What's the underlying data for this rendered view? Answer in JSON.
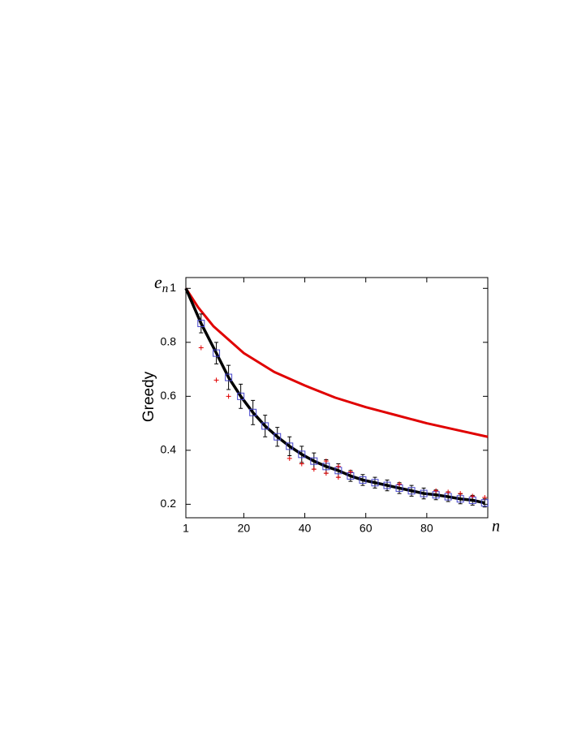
{
  "chart_data": {
    "type": "line",
    "y_label": "Greedy",
    "x_label": "n",
    "y_symbol": {
      "base": "e",
      "sub": "n"
    },
    "xlim": [
      1,
      100
    ],
    "ylim": [
      0.15,
      1.04
    ],
    "xticks": [
      1,
      20,
      40,
      60,
      80
    ],
    "yticks": [
      0.2,
      0.4,
      0.6,
      0.8,
      1
    ],
    "series": [
      {
        "kind": "line",
        "color": "#e00000",
        "width": 3,
        "x": [
          1,
          5,
          10,
          20,
          30,
          40,
          50,
          60,
          70,
          80,
          90,
          100
        ],
        "values": [
          1,
          0.93,
          0.86,
          0.76,
          0.69,
          0.64,
          0.595,
          0.56,
          0.53,
          0.5,
          0.475,
          0.45
        ]
      },
      {
        "kind": "line",
        "color": "#000000",
        "width": 3.5,
        "x": [
          1,
          6,
          11,
          15,
          19,
          23,
          27,
          31,
          35,
          39,
          43,
          47,
          51,
          55,
          59,
          63,
          67,
          71,
          75,
          79,
          83,
          87,
          91,
          95,
          99
        ],
        "values": [
          1,
          0.87,
          0.76,
          0.67,
          0.6,
          0.54,
          0.49,
          0.45,
          0.415,
          0.385,
          0.36,
          0.34,
          0.325,
          0.305,
          0.29,
          0.28,
          0.27,
          0.26,
          0.25,
          0.24,
          0.235,
          0.228,
          0.22,
          0.215,
          0.205
        ]
      },
      {
        "kind": "box",
        "color": "#4444cc",
        "x": [
          6,
          11,
          15,
          19,
          23,
          27,
          31,
          35,
          39,
          43,
          47,
          51,
          55,
          59,
          63,
          67,
          71,
          75,
          79,
          83,
          87,
          91,
          95,
          99
        ],
        "values": [
          0.87,
          0.76,
          0.67,
          0.6,
          0.54,
          0.49,
          0.45,
          0.415,
          0.385,
          0.36,
          0.34,
          0.325,
          0.305,
          0.29,
          0.28,
          0.27,
          0.26,
          0.25,
          0.24,
          0.235,
          0.228,
          0.22,
          0.215,
          0.205
        ],
        "errors": [
          0.035,
          0.04,
          0.045,
          0.045,
          0.045,
          0.04,
          0.035,
          0.035,
          0.03,
          0.03,
          0.025,
          0.025,
          0.02,
          0.02,
          0.02,
          0.02,
          0.02,
          0.02,
          0.02,
          0.018,
          0.018,
          0.018,
          0.018,
          0.015
        ]
      },
      {
        "kind": "plus",
        "color": "#e00000",
        "x": [
          6,
          11,
          15,
          35,
          39,
          43,
          47,
          47,
          51,
          51,
          55,
          71,
          83,
          87,
          91,
          95,
          99
        ],
        "values": [
          0.78,
          0.66,
          0.6,
          0.37,
          0.35,
          0.33,
          0.315,
          0.36,
          0.3,
          0.34,
          0.32,
          0.275,
          0.25,
          0.245,
          0.24,
          0.23,
          0.225
        ]
      }
    ]
  }
}
